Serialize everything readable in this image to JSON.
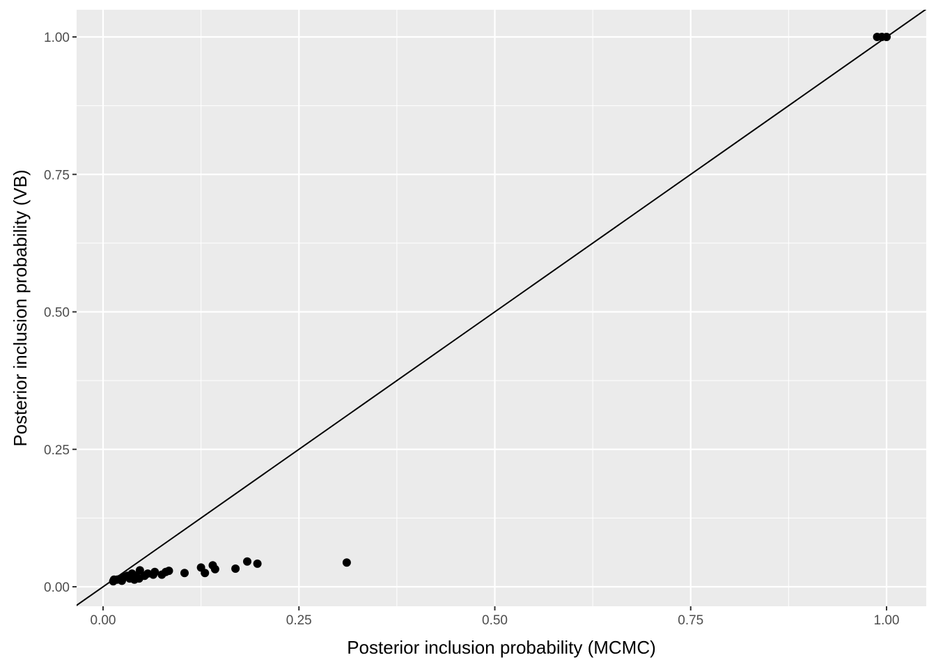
{
  "chart_data": {
    "type": "scatter",
    "title": "",
    "xlabel": "Posterior inclusion probability (MCMC)",
    "ylabel": "Posterior inclusion probability (VB)",
    "xlim": [
      -0.033,
      1.05
    ],
    "ylim": [
      -0.035,
      1.05
    ],
    "xticks": [
      0,
      0.25,
      0.5,
      0.75,
      1
    ],
    "xtick_labels": [
      "0.00",
      "0.25",
      "0.50",
      "0.75",
      "1.00"
    ],
    "yticks": [
      0,
      0.25,
      0.5,
      0.75,
      1
    ],
    "ytick_labels": [
      "0.00",
      "0.25",
      "0.50",
      "0.75",
      "1.00"
    ],
    "grid": true,
    "reference_line": {
      "slope": 1,
      "intercept": 0
    },
    "points": [
      [
        0.311,
        0.044
      ],
      [
        0.197,
        0.042
      ],
      [
        0.184,
        0.046
      ],
      [
        0.169,
        0.033
      ],
      [
        0.143,
        0.032
      ],
      [
        0.14,
        0.039
      ],
      [
        0.13,
        0.025
      ],
      [
        0.125,
        0.035
      ],
      [
        0.104,
        0.025
      ],
      [
        0.084,
        0.029
      ],
      [
        0.08,
        0.027
      ],
      [
        0.075,
        0.022
      ],
      [
        0.066,
        0.027
      ],
      [
        0.064,
        0.022
      ],
      [
        0.057,
        0.024
      ],
      [
        0.053,
        0.02
      ],
      [
        0.047,
        0.03
      ],
      [
        0.046,
        0.015
      ],
      [
        0.042,
        0.02
      ],
      [
        0.037,
        0.024
      ],
      [
        0.034,
        0.015
      ],
      [
        0.031,
        0.02
      ],
      [
        0.027,
        0.018
      ],
      [
        0.021,
        0.014
      ],
      [
        0.018,
        0.013
      ],
      [
        0.014,
        0.013
      ],
      [
        0.013,
        0.01
      ],
      [
        0.024,
        0.011
      ],
      [
        0.04,
        0.013
      ],
      [
        0.988,
        1.0
      ],
      [
        0.994,
        1.0
      ],
      [
        1.0,
        1.0
      ]
    ]
  }
}
